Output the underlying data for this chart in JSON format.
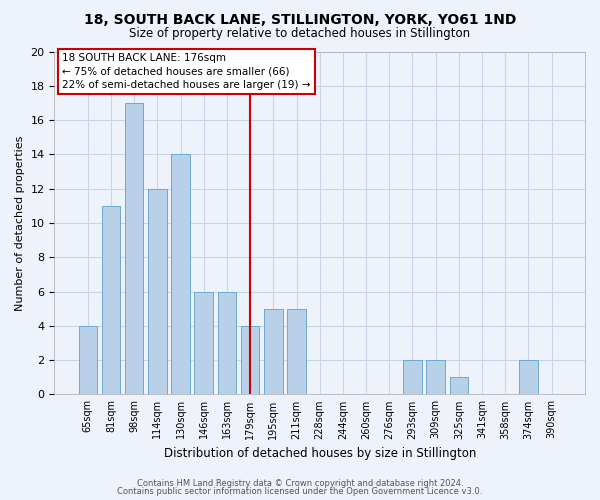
{
  "title1": "18, SOUTH BACK LANE, STILLINGTON, YORK, YO61 1ND",
  "title2": "Size of property relative to detached houses in Stillington",
  "xlabel": "Distribution of detached houses by size in Stillington",
  "ylabel": "Number of detached properties",
  "categories": [
    "65sqm",
    "81sqm",
    "98sqm",
    "114sqm",
    "130sqm",
    "146sqm",
    "163sqm",
    "179sqm",
    "195sqm",
    "211sqm",
    "228sqm",
    "244sqm",
    "260sqm",
    "276sqm",
    "293sqm",
    "309sqm",
    "325sqm",
    "341sqm",
    "358sqm",
    "374sqm",
    "390sqm"
  ],
  "values": [
    4,
    11,
    17,
    12,
    14,
    6,
    6,
    4,
    5,
    5,
    0,
    0,
    0,
    0,
    2,
    2,
    1,
    0,
    0,
    2,
    0
  ],
  "bar_color": "#b8d0e8",
  "bar_edge_color": "#6aaad4",
  "highlight_color": "#cc0000",
  "vline_x_index": 7,
  "ylim": [
    0,
    20
  ],
  "yticks": [
    0,
    2,
    4,
    6,
    8,
    10,
    12,
    14,
    16,
    18,
    20
  ],
  "annotation_line1": "18 SOUTH BACK LANE: 176sqm",
  "annotation_line2": "← 75% of detached houses are smaller (66)",
  "annotation_line3": "22% of semi-detached houses are larger (19) →",
  "annotation_box_facecolor": "#ffffff",
  "annotation_box_edgecolor": "#cc0000",
  "footer1": "Contains HM Land Registry data © Crown copyright and database right 2024.",
  "footer2": "Contains public sector information licensed under the Open Government Licence v3.0.",
  "background_color": "#eef2fa",
  "grid_color": "#d0d8e8"
}
